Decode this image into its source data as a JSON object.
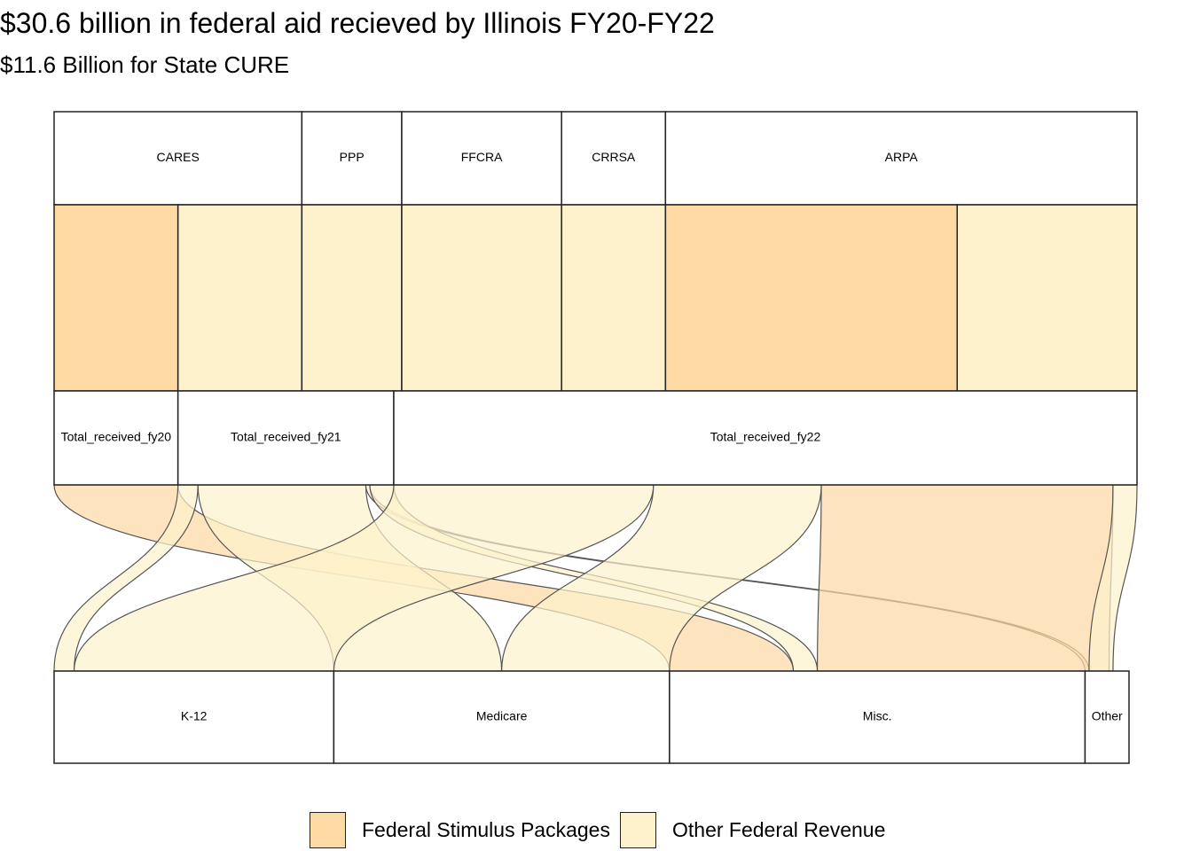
{
  "title": "$30.6 billion in federal aid recieved by Illinois FY20-FY22",
  "subtitle": "$11.6 Billion for State CURE",
  "colors": {
    "federal_stimulus": "#FDD9A3",
    "other_federal": "#FDF2CB",
    "border": "#222222",
    "ribbon_stroke": "#555555"
  },
  "legend": [
    {
      "label": "Federal Stimulus Packages",
      "color_key": "federal_stimulus"
    },
    {
      "label": "Other Federal Revenue",
      "color_key": "other_federal"
    }
  ],
  "chart_data": {
    "type": "alluvial",
    "title": "$30.6 billion in federal aid recieved by Illinois FY20-FY22",
    "subtitle": "$11.6 Billion for State CURE",
    "axes": {
      "programs": {
        "labels": [
          "CARES",
          "PPP",
          "FFCRA",
          "CRRSA",
          "ARPA"
        ],
        "values": [
          3.1,
          1.25,
          2.0,
          1.3,
          5.9
        ]
      },
      "fund_type": {
        "segments": [
          {
            "program": "CARES",
            "type": "Federal Stimulus Packages",
            "value": 1.55
          },
          {
            "program": "CARES",
            "type": "Other Federal Revenue",
            "value": 1.55
          },
          {
            "program": "PPP",
            "type": "Other Federal Revenue",
            "value": 1.25
          },
          {
            "program": "FFCRA",
            "type": "Other Federal Revenue",
            "value": 2.0
          },
          {
            "program": "CRRSA",
            "type": "Other Federal Revenue",
            "value": 1.3
          },
          {
            "program": "ARPA",
            "type": "Federal Stimulus Packages",
            "value": 3.65
          },
          {
            "program": "ARPA",
            "type": "Other Federal Revenue",
            "value": 2.25
          }
        ]
      },
      "fiscal_year": {
        "labels": [
          "Total_received_fy20",
          "Total_received_fy21",
          "Total_received_fy22"
        ],
        "values": [
          1.55,
          2.7,
          9.3
        ]
      },
      "category": {
        "labels": [
          "K-12",
          "Medicare",
          "Misc.",
          "Other"
        ],
        "values": [
          3.5,
          4.2,
          5.2,
          0.55
        ]
      }
    },
    "flows": [
      {
        "type": "Federal Stimulus Packages",
        "year": "Total_received_fy20",
        "category": "Misc.",
        "value": 1.55
      },
      {
        "type": "Other Federal Revenue",
        "year": "Total_received_fy21",
        "category": "K-12",
        "value": 0.25
      },
      {
        "type": "Other Federal Revenue",
        "year": "Total_received_fy21",
        "category": "Medicare",
        "value": 2.1
      },
      {
        "type": "Other Federal Revenue",
        "year": "Total_received_fy21",
        "category": "Other",
        "value": 0.05
      },
      {
        "type": "Other Federal Revenue",
        "year": "Total_received_fy21",
        "category": "Misc.",
        "value": 0.3
      },
      {
        "type": "Other Federal Revenue",
        "year": "Total_received_fy22",
        "category": "K-12",
        "value": 3.25
      },
      {
        "type": "Other Federal Revenue",
        "year": "Total_received_fy22",
        "category": "Medicare",
        "value": 2.1
      },
      {
        "type": "Federal Stimulus Packages",
        "year": "Total_received_fy22",
        "category": "Misc.",
        "value": 3.65
      },
      {
        "type": "Other Federal Revenue",
        "year": "Total_received_fy22",
        "category": "Other",
        "value": 0.3
      }
    ]
  }
}
